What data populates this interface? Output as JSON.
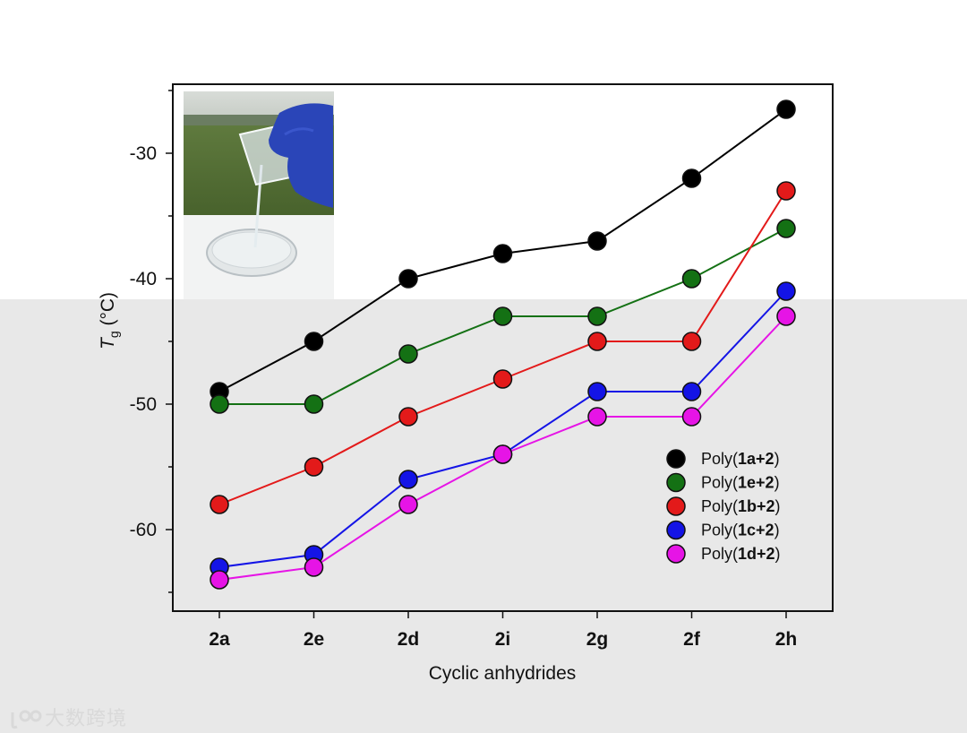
{
  "chart_data": {
    "type": "line",
    "categories": [
      "2a",
      "2e",
      "2d",
      "2i",
      "2g",
      "2f",
      "2h"
    ],
    "xlabel": "Cyclic anhydrides",
    "ylabel_symbol": "T",
    "ylabel_subscript": "g",
    "ylabel_unit": " (°C)",
    "ylim": [
      -66.5,
      -24.5
    ],
    "yticks": [
      -60,
      -50,
      -40,
      -30
    ],
    "ytick_labels": [
      "-60",
      "-50",
      "-40",
      "-30"
    ],
    "grid": false,
    "legend_position": "bottom-right",
    "series": [
      {
        "name": "Poly(1a+2)",
        "prefix": "Poly(",
        "bold": "1a+2",
        "suffix": ")",
        "color": "#000000",
        "values": [
          -49,
          -45,
          -40,
          -38,
          -37,
          -32,
          -26.5
        ]
      },
      {
        "name": "Poly(1e+2)",
        "prefix": "Poly(",
        "bold": "1e+2",
        "suffix": ")",
        "color": "#147114",
        "values": [
          -50,
          -50,
          -46,
          -43,
          -43,
          -40,
          -36
        ]
      },
      {
        "name": "Poly(1b+2)",
        "prefix": "Poly(",
        "bold": "1b+2",
        "suffix": ")",
        "color": "#e31a1a",
        "values": [
          -58,
          -55,
          -51,
          -48,
          -45,
          -45,
          -33
        ]
      },
      {
        "name": "Poly(1c+2)",
        "prefix": "Poly(",
        "bold": "1c+2",
        "suffix": ")",
        "color": "#1414e6",
        "values": [
          -63,
          -62,
          -56,
          -54,
          -49,
          -49,
          -41
        ]
      },
      {
        "name": "Poly(1d+2)",
        "prefix": "Poly(",
        "bold": "1d+2",
        "suffix": ")",
        "color": "#e614e6",
        "values": [
          -64,
          -63,
          -58,
          -54,
          -51,
          -51,
          -43
        ]
      }
    ]
  },
  "inset": {
    "subject": "photo-beaker-pouring-liquid"
  },
  "watermark": {
    "text": "大数跨境"
  }
}
